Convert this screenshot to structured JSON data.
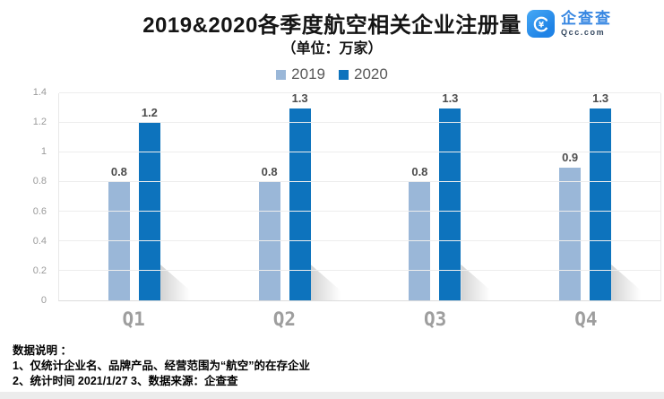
{
  "header": {
    "title": "2019&2020各季度航空相关企业注册量",
    "subtitle": "（单位：万家）"
  },
  "logo": {
    "name": "企查查",
    "domain": "Qcc.com",
    "icon": "qcc-logo-icon",
    "brand_color": "#2e8fea",
    "name_color": "#3787e2",
    "domain_color": "#33475f"
  },
  "legend": [
    {
      "label": "2019",
      "color": "#9ab7d8"
    },
    {
      "label": "2020",
      "color": "#0d73bd"
    }
  ],
  "chart_data": {
    "type": "bar",
    "title": "2019&2020各季度航空相关企业注册量",
    "subtitle": "（单位：万家）",
    "unit": "万家",
    "categories": [
      "Q1",
      "Q2",
      "Q3",
      "Q4"
    ],
    "series": [
      {
        "name": "2019",
        "color": "#9ab7d8",
        "values": [
          0.8,
          0.8,
          0.8,
          0.9
        ]
      },
      {
        "name": "2020",
        "color": "#0d73bd",
        "values": [
          1.2,
          1.3,
          1.3,
          1.3
        ]
      }
    ],
    "ylim": [
      0,
      1.4
    ],
    "y_ticks": [
      0,
      0.2,
      0.4,
      0.6,
      0.8,
      1,
      1.2,
      1.4
    ],
    "grid": true,
    "legend_position": "top",
    "value_labels": true
  },
  "footnotes": {
    "heading": "数据说明 ：",
    "line1": "1、仅统计企业名、品牌产品、经营范围为“航空”的在存企业",
    "line2": "2、统计时间 2021/1/27   3、数据来源：企查查"
  }
}
